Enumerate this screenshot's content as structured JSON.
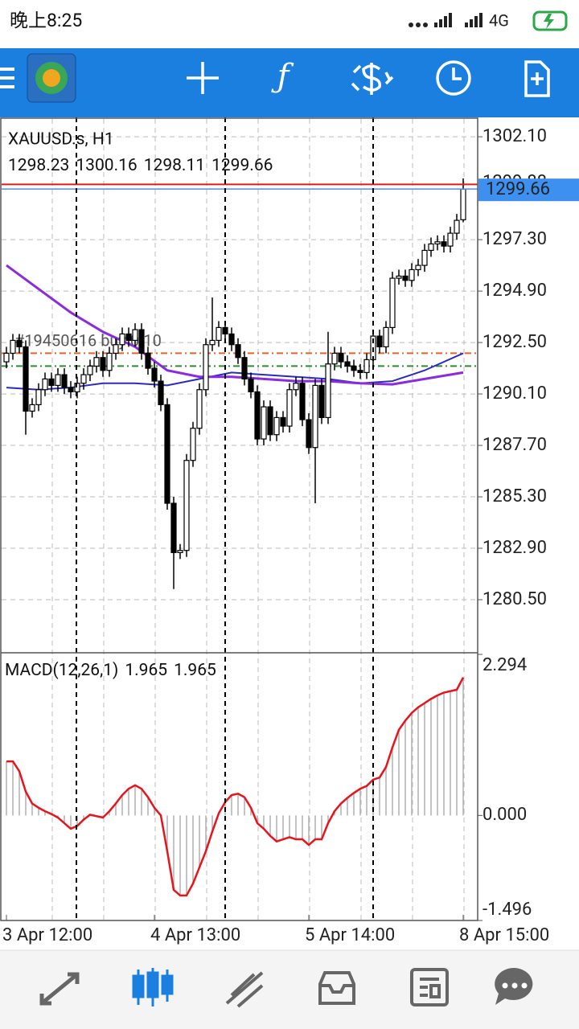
{
  "status_bar": {
    "time": "晚上8:25",
    "network": "4G"
  },
  "chart_data": [
    {
      "type": "candlestick",
      "title": "XAUUSD.s, H1",
      "open": [
        1291.6,
        1292.0,
        1292.6,
        1292.3,
        1289.3,
        1289.6,
        1290.3,
        1290.8,
        1290.5,
        1291.0,
        1290.4,
        1290.2,
        1290.6,
        1291.0,
        1291.4,
        1291.8,
        1291.2,
        1292.0,
        1292.4,
        1292.9,
        1292.6,
        1293.1,
        1292.0,
        1291.3,
        1290.7,
        1289.6,
        1285.0,
        1282.7,
        1282.8,
        1287.0,
        1288.5,
        1290.3,
        1292.4,
        1292.6,
        1293.2,
        1292.9,
        1292.4,
        1291.8,
        1290.8,
        1290.2,
        1288.0,
        1289.5,
        1288.2,
        1289.0,
        1288.6,
        1290.3,
        1290.6,
        1288.9,
        1287.6,
        1290.5,
        1289.0,
        1291.5,
        1292.0,
        1291.6,
        1291.4,
        1291.2,
        1291.1,
        1291.7,
        1292.8,
        1292.3,
        1293.2,
        1295.5,
        1295.6,
        1295.4,
        1295.9,
        1296.1,
        1296.8,
        1297.1,
        1297.2,
        1297.0,
        1297.6,
        1298.23
      ],
      "high": [
        1292.3,
        1292.9,
        1292.9,
        1292.6,
        1289.9,
        1290.6,
        1291.1,
        1291.1,
        1291.3,
        1291.3,
        1290.7,
        1290.9,
        1291.3,
        1291.7,
        1292.1,
        1292.1,
        1292.3,
        1292.7,
        1293.2,
        1293.2,
        1293.4,
        1293.4,
        1292.3,
        1291.6,
        1291.0,
        1289.9,
        1285.3,
        1283.1,
        1287.3,
        1288.8,
        1290.6,
        1292.7,
        1294.6,
        1293.5,
        1293.5,
        1293.2,
        1292.7,
        1292.1,
        1291.1,
        1290.5,
        1289.8,
        1289.8,
        1289.3,
        1289.3,
        1290.6,
        1290.9,
        1290.9,
        1289.2,
        1290.8,
        1290.8,
        1293.0,
        1292.3,
        1292.3,
        1291.9,
        1291.7,
        1291.5,
        1292.0,
        1293.1,
        1293.1,
        1293.5,
        1295.8,
        1295.9,
        1295.9,
        1296.2,
        1296.4,
        1297.1,
        1297.4,
        1297.5,
        1297.5,
        1297.9,
        1298.5,
        1300.16
      ],
      "low": [
        1291.3,
        1291.7,
        1292.0,
        1288.2,
        1289.0,
        1289.3,
        1290.0,
        1290.2,
        1290.2,
        1290.1,
        1289.9,
        1289.9,
        1290.3,
        1290.7,
        1291.1,
        1290.9,
        1290.9,
        1291.7,
        1292.1,
        1292.3,
        1292.3,
        1291.7,
        1291.0,
        1290.4,
        1289.3,
        1284.7,
        1281.0,
        1282.4,
        1282.5,
        1286.7,
        1288.2,
        1290.0,
        1292.1,
        1292.3,
        1292.6,
        1292.1,
        1291.5,
        1290.5,
        1289.9,
        1287.7,
        1287.7,
        1287.9,
        1287.9,
        1288.3,
        1288.3,
        1290.0,
        1288.6,
        1287.3,
        1285.0,
        1288.7,
        1288.7,
        1291.2,
        1291.3,
        1291.1,
        1290.9,
        1290.8,
        1290.8,
        1291.4,
        1292.0,
        1292.0,
        1292.9,
        1295.2,
        1295.1,
        1295.1,
        1295.6,
        1295.8,
        1296.5,
        1296.8,
        1296.7,
        1296.7,
        1297.3,
        1298.11
      ],
      "close": [
        1292.0,
        1292.6,
        1292.3,
        1289.3,
        1289.6,
        1290.3,
        1290.8,
        1290.5,
        1291.0,
        1290.4,
        1290.2,
        1290.6,
        1291.0,
        1291.4,
        1291.8,
        1291.2,
        1292.0,
        1292.4,
        1292.9,
        1292.6,
        1293.1,
        1292.0,
        1291.3,
        1290.7,
        1289.6,
        1285.0,
        1282.7,
        1282.8,
        1287.0,
        1288.5,
        1290.3,
        1292.4,
        1292.6,
        1293.2,
        1292.9,
        1292.4,
        1291.8,
        1290.8,
        1290.2,
        1288.0,
        1289.5,
        1288.2,
        1289.0,
        1288.6,
        1290.3,
        1290.6,
        1288.9,
        1287.6,
        1290.5,
        1289.0,
        1291.5,
        1292.0,
        1291.6,
        1291.4,
        1291.2,
        1291.1,
        1291.7,
        1292.8,
        1292.3,
        1293.2,
        1295.5,
        1295.6,
        1295.4,
        1295.9,
        1296.1,
        1296.8,
        1297.1,
        1297.2,
        1297.0,
        1297.6,
        1298.2,
        1299.66
      ],
      "moving_averages": [
        {
          "color": "#2b2bbf",
          "x": [
            0,
            5,
            10,
            15,
            20,
            25,
            30,
            35,
            40,
            45,
            50,
            55,
            60,
            65,
            71
          ],
          "values": [
            1290.4,
            1290.3,
            1290.4,
            1290.6,
            1290.6,
            1290.5,
            1290.8,
            1291.1,
            1291.0,
            1290.9,
            1290.8,
            1290.6,
            1290.7,
            1291.2,
            1292.0
          ]
        },
        {
          "color": "#8a2be2",
          "x": [
            0,
            5,
            10,
            15,
            20,
            25,
            30,
            35,
            40,
            45,
            50,
            55,
            60,
            65,
            71
          ],
          "values": [
            1296.1,
            1295.0,
            1293.9,
            1293.0,
            1292.3,
            1291.2,
            1290.9,
            1290.9,
            1290.8,
            1290.7,
            1290.7,
            1290.6,
            1290.55,
            1290.8,
            1291.1
          ]
        }
      ],
      "ask": 1299.88,
      "order_label": "#19450616 buy 0.10",
      "levels": [
        {
          "value": 1292.0,
          "color": "#e8602a"
        },
        {
          "value": 1291.4,
          "color": "#2e8b2e"
        }
      ],
      "ylim": [
        1278.1,
        1302.93
      ],
      "yticks": [
        {
          "value": 1302.1,
          "label": "1302.10"
        },
        {
          "value": 1297.3,
          "label": "1297.30"
        },
        {
          "value": 1294.9,
          "label": "1294.90"
        },
        {
          "value": 1292.5,
          "label": "1292.50"
        },
        {
          "value": 1290.1,
          "label": "1290.10"
        },
        {
          "value": 1287.7,
          "label": "1287.70"
        },
        {
          "value": 1285.3,
          "label": "1285.30"
        },
        {
          "value": 1282.9,
          "label": "1282.90"
        },
        {
          "value": 1280.5,
          "label": "1280.50"
        }
      ],
      "xticks": [
        {
          "value": 0,
          "label": "3 Apr 12:00"
        },
        {
          "value": 23,
          "label": "4 Apr 13:00"
        },
        {
          "value": 47,
          "label": "5 Apr 14:00"
        },
        {
          "value": 71,
          "label": "8 Apr 15:00"
        }
      ],
      "grid": true
    },
    {
      "type": "macd",
      "title": "MACD(12,26,1)",
      "color": "#e8141c",
      "bar_color": "#b0b0b0",
      "values": [
        0.77,
        0.77,
        0.63,
        0.34,
        0.17,
        0.11,
        0.06,
        0.02,
        -0.03,
        -0.11,
        -0.19,
        -0.15,
        -0.06,
        0.01,
        -0.01,
        -0.03,
        0.06,
        0.17,
        0.29,
        0.38,
        0.43,
        0.38,
        0.26,
        0.11,
        0.0,
        -0.51,
        -1.06,
        -1.14,
        -1.14,
        -0.97,
        -0.74,
        -0.51,
        -0.23,
        0.03,
        0.19,
        0.29,
        0.31,
        0.26,
        0.11,
        -0.11,
        -0.19,
        -0.29,
        -0.37,
        -0.34,
        -0.31,
        -0.34,
        -0.34,
        -0.42,
        -0.34,
        -0.34,
        -0.11,
        0.06,
        0.17,
        0.25,
        0.32,
        0.38,
        0.42,
        0.51,
        0.54,
        0.69,
        0.97,
        1.22,
        1.35,
        1.46,
        1.54,
        1.6,
        1.66,
        1.71,
        1.75,
        1.77,
        1.79,
        1.965
      ],
      "signal": 1.965,
      "ylim": [
        -1.496,
        2.294
      ],
      "yticks": [
        2.294,
        {
          "value": 0,
          "label": "0.000"
        },
        -1.496
      ]
    }
  ]
}
